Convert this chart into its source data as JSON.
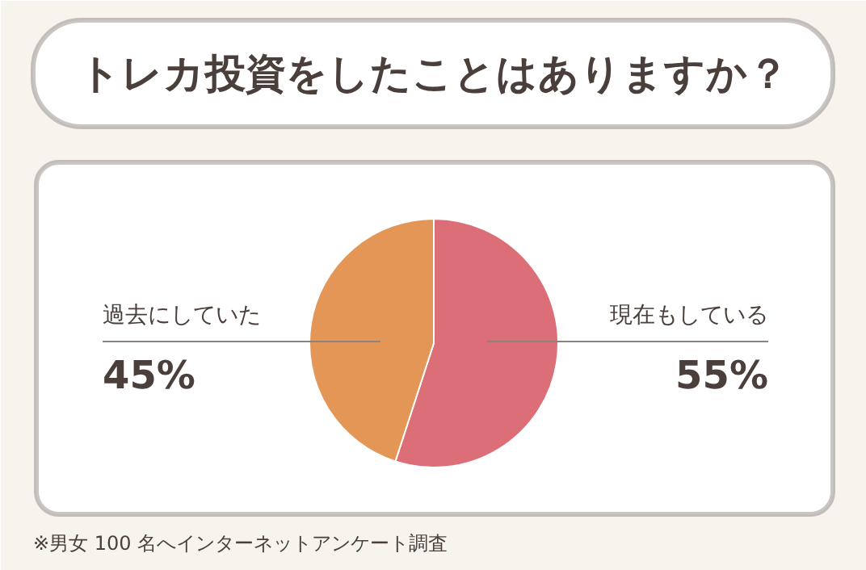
{
  "chart_data": {
    "type": "pie",
    "title": "トレカ投資をしたことはありますか？",
    "categories": [
      "現在もしている",
      "過去にしていた"
    ],
    "values": [
      55,
      45
    ],
    "colors": [
      "#dc6e78",
      "#e39655"
    ],
    "value_labels": [
      "55%",
      "45%"
    ],
    "annotations": [
      "※男女 100 名へインターネットアンケート調査"
    ]
  }
}
